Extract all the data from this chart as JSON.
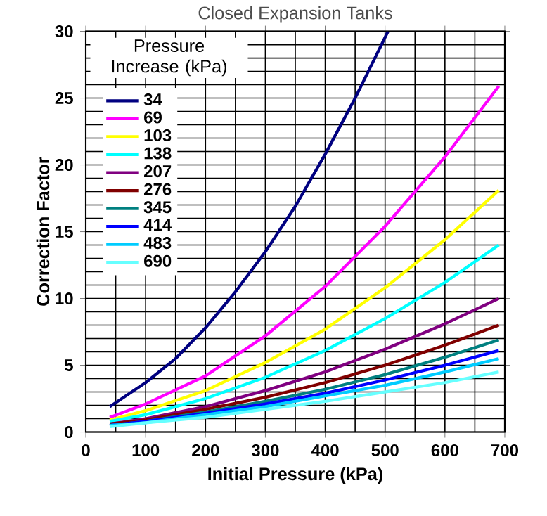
{
  "chart_data": {
    "type": "line",
    "title": "Closed Expansion Tanks",
    "xlabel": "Initial Pressure (kPa)",
    "ylabel": "Correction Factor",
    "legend_title": "Pressure Increase (kPa)",
    "xlim": [
      0,
      700
    ],
    "ylim": [
      0,
      30
    ],
    "xticks": [
      0,
      100,
      200,
      300,
      400,
      500,
      600,
      700
    ],
    "yticks": [
      0,
      5,
      10,
      15,
      20,
      25,
      30
    ],
    "grid": true,
    "legend": "top left",
    "marker": "none",
    "line_style": "solid",
    "series": [
      {
        "name": "34",
        "color": "#000080",
        "x": [
          40,
          100,
          150,
          200,
          250,
          300,
          350,
          400,
          450,
          505
        ],
        "values": [
          1.9,
          3.7,
          5.5,
          7.8,
          10.5,
          13.5,
          16.9,
          20.8,
          25.0,
          30.0
        ]
      },
      {
        "name": "69",
        "color": "#ff00ff",
        "x": [
          40,
          100,
          200,
          300,
          400,
          500,
          600,
          690
        ],
        "values": [
          1.1,
          2.1,
          4.2,
          7.2,
          10.9,
          15.4,
          20.6,
          25.9
        ]
      },
      {
        "name": "103",
        "color": "#ffff00",
        "x": [
          40,
          100,
          200,
          300,
          400,
          500,
          600,
          690
        ],
        "values": [
          0.9,
          1.6,
          3.1,
          5.2,
          7.7,
          10.8,
          14.4,
          18.1
        ]
      },
      {
        "name": "138",
        "color": "#00ffff",
        "x": [
          40,
          100,
          200,
          300,
          400,
          500,
          600,
          690
        ],
        "values": [
          0.8,
          1.3,
          2.5,
          4.1,
          6.1,
          8.5,
          11.2,
          14.0
        ]
      },
      {
        "name": "207",
        "color": "#800080",
        "x": [
          40,
          100,
          200,
          300,
          400,
          500,
          600,
          690
        ],
        "values": [
          0.6,
          1.0,
          1.9,
          3.1,
          4.5,
          6.2,
          8.1,
          10.0
        ]
      },
      {
        "name": "276",
        "color": "#800000",
        "x": [
          40,
          100,
          200,
          300,
          400,
          500,
          600,
          690
        ],
        "values": [
          0.6,
          0.9,
          1.7,
          2.6,
          3.7,
          5.0,
          6.5,
          8.0
        ]
      },
      {
        "name": "345",
        "color": "#008080",
        "x": [
          40,
          100,
          200,
          300,
          400,
          500,
          600,
          690
        ],
        "values": [
          0.5,
          0.8,
          1.5,
          2.3,
          3.2,
          4.3,
          5.6,
          6.9
        ]
      },
      {
        "name": "414",
        "color": "#0000ff",
        "x": [
          40,
          100,
          200,
          300,
          400,
          500,
          600,
          690
        ],
        "values": [
          0.5,
          0.8,
          1.4,
          2.1,
          2.9,
          3.9,
          5.0,
          6.1
        ]
      },
      {
        "name": "483",
        "color": "#00ccff",
        "x": [
          40,
          100,
          200,
          300,
          400,
          500,
          600,
          690
        ],
        "values": [
          0.5,
          0.7,
          1.3,
          1.9,
          2.7,
          3.5,
          4.5,
          5.5
        ]
      },
      {
        "name": "690",
        "color": "#66ffff",
        "x": [
          40,
          100,
          200,
          300,
          400,
          500,
          600,
          690
        ],
        "values": [
          0.4,
          0.7,
          1.1,
          1.7,
          2.3,
          3.0,
          3.7,
          4.5
        ]
      }
    ]
  }
}
